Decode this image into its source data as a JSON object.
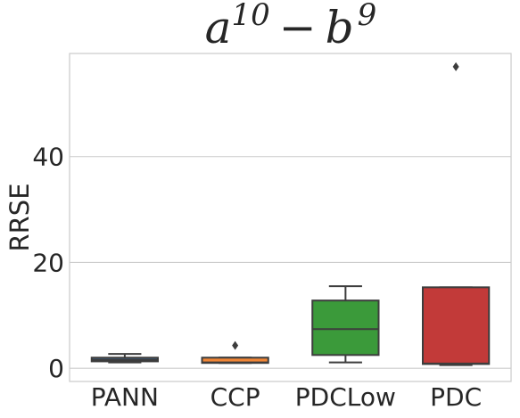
{
  "chart_data": {
    "type": "box",
    "title": {
      "base_a": "a",
      "exp_a": "10",
      "op": "−",
      "base_b": "b",
      "exp_b": "9"
    },
    "xlabel": "",
    "ylabel": "RRSE",
    "ylim": [
      -2.5,
      59.5
    ],
    "yticks": [
      0,
      20,
      40
    ],
    "grid": "horizontal",
    "categories": [
      "PANN",
      "CCP",
      "PDCLow",
      "PDC"
    ],
    "colors": [
      "#3a75af",
      "#ef8536",
      "#3b9a3a",
      "#c23a39"
    ],
    "boxes": [
      {
        "category": "PANN",
        "whisker_low": 1.1,
        "q1": 1.3,
        "median": 1.6,
        "q3": 2.0,
        "whisker_high": 2.7,
        "outliers": []
      },
      {
        "category": "CCP",
        "whisker_low": 1.0,
        "q1": 1.0,
        "median": 1.1,
        "q3": 2.0,
        "whisker_high": 2.0,
        "outliers": [
          4.3
        ]
      },
      {
        "category": "PDCLow",
        "whisker_low": 1.1,
        "q1": 2.5,
        "median": 7.4,
        "q3": 12.8,
        "whisker_high": 15.5,
        "outliers": []
      },
      {
        "category": "PDC",
        "whisker_low": 0.6,
        "q1": 0.8,
        "median": 0.9,
        "q3": 15.3,
        "whisker_high": 15.3,
        "outliers": [
          57.0
        ]
      }
    ]
  }
}
